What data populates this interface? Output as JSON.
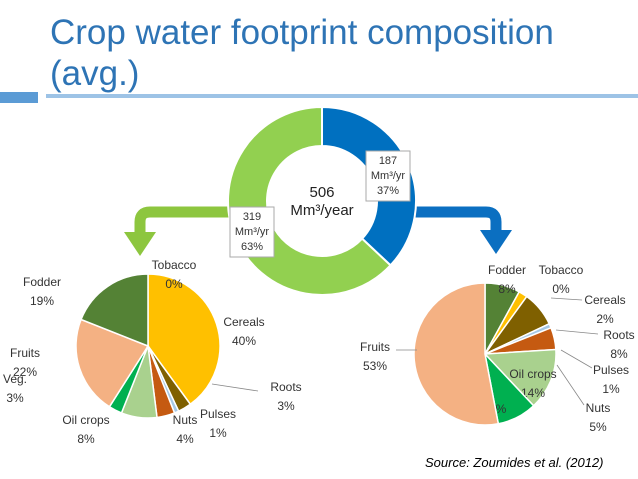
{
  "title": "Crop water footprint composition (avg.)",
  "source": "Source: Zoumides et al. (2012)",
  "colors": {
    "title": "#2e74b5",
    "arrow_left": "#8dc63f",
    "arrow_right": "#0b6fc1",
    "total_green": "#92d050",
    "total_blue": "#0070c0"
  },
  "chart_data": [
    {
      "type": "pie",
      "variant": "donut",
      "center_label": [
        "506",
        "Mm³/year"
      ],
      "slices": [
        {
          "value": 37,
          "color": "#0070c0",
          "label": [
            "187",
            "Mm³/yr",
            "37%"
          ]
        },
        {
          "value": 63,
          "color": "#92d050",
          "label": [
            "319",
            "Mm³/yr",
            "63%"
          ]
        }
      ]
    },
    {
      "type": "pie",
      "slices": [
        {
          "name": "Cereals",
          "value": 40,
          "pct": "40%",
          "color": "#ffc000"
        },
        {
          "name": "Roots",
          "value": 3,
          "pct": "3%",
          "color": "#7f6000"
        },
        {
          "name": "Pulses",
          "value": 1,
          "pct": "1%",
          "color": "#a5c8e6"
        },
        {
          "name": "Nuts",
          "value": 4,
          "pct": "4%",
          "color": "#c55a11"
        },
        {
          "name": "Oil crops",
          "value": 8,
          "pct": "8%",
          "color": "#a9d18e"
        },
        {
          "name": "Veg.",
          "value": 3,
          "pct": "3%",
          "color": "#00b050"
        },
        {
          "name": "Fruits",
          "value": 22,
          "pct": "22%",
          "color": "#f4b183"
        },
        {
          "name": "Fodder",
          "value": 19,
          "pct": "19%",
          "color": "#548235"
        },
        {
          "name": "Tobacco",
          "value": 0,
          "pct": "0%",
          "color": "#ffc000"
        }
      ]
    },
    {
      "type": "pie",
      "slices": [
        {
          "name": "Fodder",
          "value": 8,
          "pct": "8%",
          "color": "#548235"
        },
        {
          "name": "Tobacco",
          "value": 0,
          "pct": "0%",
          "color": "#ffc000"
        },
        {
          "name": "Cereals",
          "value": 2,
          "pct": "2%",
          "color": "#ffc000"
        },
        {
          "name": "Roots",
          "value": 8,
          "pct": "8%",
          "color": "#7f6000"
        },
        {
          "name": "Pulses",
          "value": 1,
          "pct": "1%",
          "color": "#a5c8e6"
        },
        {
          "name": "Nuts",
          "value": 5,
          "pct": "5%",
          "color": "#c55a11"
        },
        {
          "name": "Oil crops",
          "value": 14,
          "pct": "14%",
          "color": "#a9d18e"
        },
        {
          "name": "Veg.",
          "value": 9,
          "pct": "9%",
          "color": "#00b050"
        },
        {
          "name": "Fruits",
          "value": 53,
          "pct": "53%",
          "color": "#f4b183"
        }
      ]
    }
  ]
}
